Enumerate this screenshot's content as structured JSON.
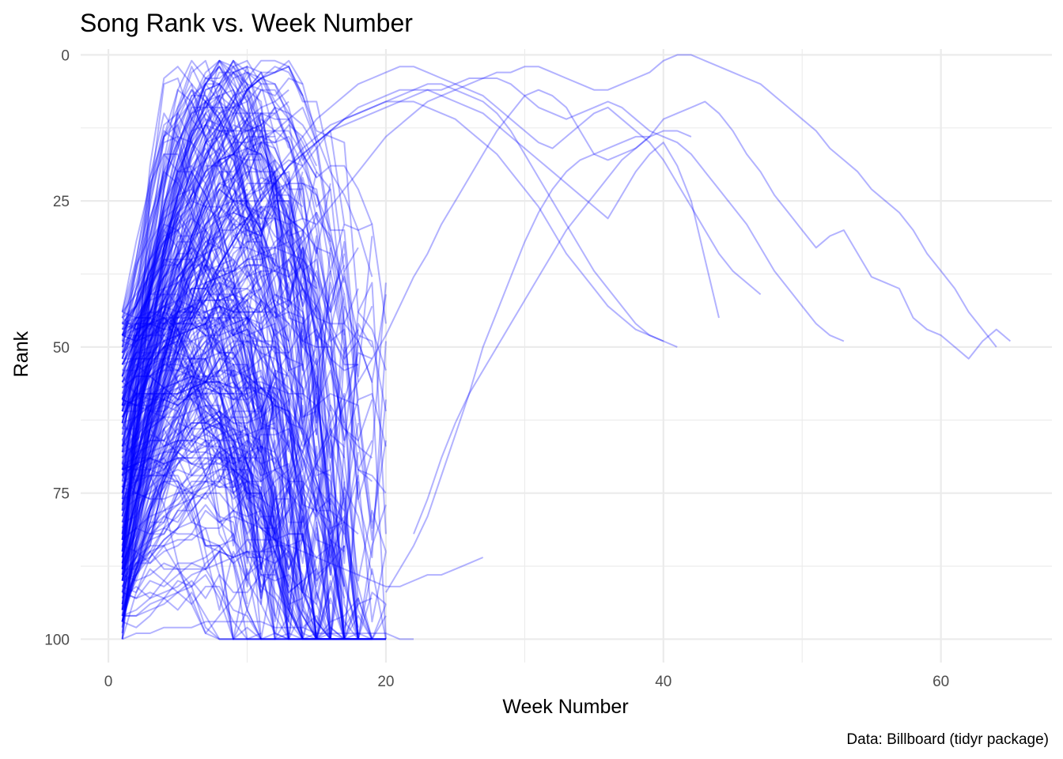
{
  "chart_data": {
    "type": "line",
    "title": "Song Rank vs. Week Number",
    "xlabel": "Week Number",
    "ylabel": "Rank",
    "caption": "Data: Billboard (tidyr package)",
    "xlim": [
      -2,
      68
    ],
    "ylim": [
      104,
      -1
    ],
    "y_reversed": true,
    "x_ticks": [
      0,
      20,
      40,
      60
    ],
    "x_minor_ticks": [
      10,
      30,
      50
    ],
    "y_ticks": [
      0,
      25,
      50,
      75,
      100
    ],
    "y_minor_ticks": [
      12.5,
      37.5,
      62.5,
      87.5
    ],
    "grid": true,
    "line_color": "#0000ff",
    "line_opacity": 0.3,
    "legend": "none",
    "series": [
      {
        "x": [
          1,
          2,
          3,
          4,
          5,
          6,
          7,
          8,
          9,
          10,
          11,
          12,
          13,
          14,
          15,
          16,
          17,
          18,
          19,
          20,
          21,
          22,
          23,
          24,
          25,
          26,
          27,
          28,
          29,
          30,
          31,
          32,
          33,
          34,
          35,
          36,
          37,
          38,
          39,
          40,
          41,
          42,
          43,
          44,
          45,
          46,
          47,
          48,
          49,
          50,
          51,
          52,
          53,
          54,
          55,
          56,
          57,
          58,
          59,
          60,
          61,
          62,
          63,
          64,
          65
        ],
        "y": [
          87,
          82,
          72,
          77,
          87,
          94,
          99,
          96,
          93,
          89,
          85,
          82,
          78,
          74,
          70,
          65,
          60,
          56,
          52,
          48,
          43,
          38,
          34,
          29,
          25,
          21,
          17,
          13,
          10,
          7,
          6,
          7,
          9,
          13,
          17,
          18,
          17,
          16,
          14,
          11,
          10,
          9,
          8,
          10,
          13,
          17,
          20,
          24,
          27,
          30,
          33,
          31,
          30,
          34,
          38,
          39,
          40,
          45,
          47,
          48,
          50,
          52,
          49,
          47,
          49
        ]
      },
      {
        "x": [
          1,
          2,
          3,
          4,
          5,
          6,
          7,
          8,
          9,
          10,
          11,
          12,
          13,
          14,
          15,
          16,
          17,
          18,
          19,
          20,
          21,
          22,
          23,
          24,
          25,
          26,
          27,
          28,
          29,
          30,
          31,
          32,
          33,
          34,
          35,
          36,
          37,
          38,
          39,
          40,
          41,
          42,
          43,
          44,
          45,
          46,
          47,
          48,
          49,
          50,
          51,
          52,
          53,
          54,
          55,
          56,
          57,
          58,
          59,
          60,
          61,
          62,
          63,
          64
        ],
        "y": [
          68,
          65,
          61,
          56,
          51,
          46,
          41,
          36,
          32,
          28,
          24,
          22,
          19,
          17,
          15,
          13,
          11,
          10,
          9,
          8,
          8,
          7,
          6,
          6,
          5,
          4,
          4,
          3,
          3,
          2,
          2,
          3,
          4,
          5,
          6,
          6,
          5,
          4,
          3,
          1,
          0,
          0,
          1,
          2,
          3,
          4,
          5,
          7,
          9,
          11,
          13,
          16,
          18,
          20,
          23,
          25,
          27,
          30,
          34,
          37,
          40,
          44,
          47,
          50
        ]
      },
      {
        "x": [
          1,
          2,
          3,
          4,
          5,
          6,
          7,
          8,
          9,
          10,
          11,
          12,
          13,
          14,
          15,
          16,
          17,
          18,
          19,
          20,
          21,
          22,
          23,
          24,
          25,
          26,
          27,
          28,
          29,
          30,
          31,
          32,
          33,
          34,
          35,
          36,
          37,
          38,
          39,
          40,
          41,
          42,
          43,
          44,
          45,
          46,
          47,
          48,
          49,
          50,
          51,
          52,
          53
        ],
        "y": [
          81,
          78,
          74,
          70,
          66,
          62,
          58,
          54,
          50,
          46,
          42,
          38,
          35,
          32,
          29,
          26,
          23,
          20,
          17,
          14,
          12,
          10,
          8,
          7,
          6,
          5,
          4,
          4,
          5,
          7,
          9,
          10,
          11,
          10,
          9,
          8,
          9,
          11,
          13,
          14,
          15,
          17,
          20,
          23,
          26,
          29,
          33,
          37,
          40,
          43,
          46,
          48,
          49
        ]
      },
      {
        "x": [
          1,
          2,
          3,
          4,
          5,
          6,
          7,
          8,
          9,
          10,
          11,
          12,
          13,
          14,
          15,
          16,
          17,
          18,
          19,
          20,
          21,
          22,
          23,
          24,
          25,
          26,
          27,
          28,
          29,
          30,
          31,
          32,
          33,
          34,
          35,
          36,
          37,
          38,
          39,
          40,
          41,
          42,
          43,
          44,
          45,
          46,
          47
        ],
        "y": [
          71,
          66,
          60,
          55,
          50,
          45,
          40,
          36,
          32,
          28,
          24,
          20,
          17,
          14,
          11,
          9,
          7,
          5,
          4,
          3,
          2,
          2,
          3,
          4,
          5,
          6,
          7,
          9,
          11,
          13,
          15,
          16,
          14,
          12,
          10,
          9,
          11,
          13,
          15,
          18,
          22,
          26,
          30,
          34,
          37,
          39,
          41
        ]
      },
      {
        "x": [
          1,
          2,
          3,
          4,
          5,
          6,
          7,
          8,
          9,
          10,
          11,
          12,
          13,
          14,
          15,
          16,
          17,
          18,
          19,
          20,
          21,
          22,
          23,
          24,
          25,
          26,
          27,
          28,
          29,
          30,
          31,
          32,
          33,
          34,
          35,
          36,
          37,
          38,
          39,
          40,
          41,
          42,
          43,
          44
        ],
        "y": [
          77,
          71,
          64,
          58,
          52,
          47,
          42,
          37,
          33,
          29,
          25,
          22,
          19,
          16,
          14,
          12,
          11,
          10,
          9,
          8,
          7,
          6,
          6,
          7,
          8,
          9,
          10,
          12,
          14,
          16,
          18,
          20,
          22,
          24,
          26,
          28,
          24,
          20,
          17,
          15,
          19,
          25,
          35,
          45
        ]
      },
      {
        "x": [
          1,
          2,
          3,
          4,
          5,
          6,
          7,
          8,
          9,
          10,
          11,
          12,
          13,
          14,
          15,
          16,
          17,
          18,
          19,
          20,
          21,
          22,
          23,
          24,
          25,
          26,
          27,
          28,
          29,
          30,
          31,
          32,
          33,
          34,
          35,
          36,
          37,
          38,
          39,
          40,
          41
        ],
        "y": [
          92,
          86,
          79,
          72,
          65,
          58,
          52,
          46,
          40,
          35,
          30,
          26,
          22,
          19,
          16,
          13,
          11,
          9,
          8,
          7,
          6,
          6,
          5,
          5,
          6,
          7,
          8,
          10,
          13,
          17,
          21,
          25,
          29,
          33,
          37,
          40,
          43,
          46,
          48,
          49,
          50
        ]
      },
      {
        "x": [
          1,
          2,
          3,
          4,
          5,
          6,
          7,
          8,
          9,
          10,
          11,
          12,
          13,
          14,
          15,
          16,
          17,
          18,
          19,
          20,
          21,
          22,
          23,
          24,
          25,
          26,
          27,
          28,
          29,
          30,
          31,
          32,
          33,
          34,
          35,
          36,
          37,
          38,
          39,
          40
        ],
        "y": [
          74,
          68,
          62,
          56,
          50,
          45,
          40,
          36,
          32,
          28,
          25,
          22,
          19,
          17,
          15,
          13,
          12,
          11,
          10,
          9,
          8,
          8,
          9,
          10,
          11,
          13,
          15,
          17,
          20,
          23,
          26,
          30,
          34,
          37,
          40,
          43,
          45,
          47,
          48,
          49
        ]
      },
      {
        "x": [
          20,
          21,
          22,
          23,
          24,
          25,
          26,
          27,
          28,
          29,
          30,
          31,
          32,
          33,
          34,
          35,
          36,
          37,
          38,
          39,
          40,
          41,
          42
        ],
        "y": [
          92,
          88,
          84,
          79,
          72,
          65,
          58,
          50,
          44,
          38,
          32,
          27,
          23,
          20,
          18,
          17,
          16,
          15,
          14,
          14,
          13,
          13,
          14
        ]
      },
      {
        "x": [
          22,
          23,
          24,
          25,
          26,
          27,
          28,
          29,
          30,
          31,
          32,
          33,
          34,
          35,
          36,
          37,
          38,
          39
        ],
        "y": [
          82,
          76,
          69,
          63,
          58,
          54,
          50,
          46,
          42,
          38,
          34,
          30,
          27,
          24,
          21,
          18,
          16,
          14
        ]
      },
      {
        "x": [
          1,
          2,
          3,
          4,
          5,
          6,
          7,
          8,
          9,
          10,
          11,
          12,
          13,
          14,
          15,
          16,
          17,
          18,
          19,
          20,
          21,
          22,
          23,
          24,
          25,
          26,
          27
        ],
        "y": [
          96,
          95,
          93,
          92,
          91,
          89,
          88,
          87,
          86,
          85,
          85,
          84,
          84,
          85,
          86,
          87,
          88,
          89,
          90,
          91,
          91,
          90,
          89,
          89,
          88,
          87,
          86
        ]
      },
      {
        "x": [
          1,
          2,
          3,
          4,
          5,
          6,
          7,
          8,
          9,
          10,
          11,
          12,
          13,
          14,
          15,
          16,
          17,
          18,
          19,
          20,
          21,
          22
        ],
        "y": [
          100,
          99,
          99,
          98,
          98,
          98,
          97,
          97,
          97,
          97,
          97,
          98,
          98,
          98,
          99,
          99,
          99,
          99,
          99,
          99,
          100,
          100
        ]
      }
    ]
  }
}
